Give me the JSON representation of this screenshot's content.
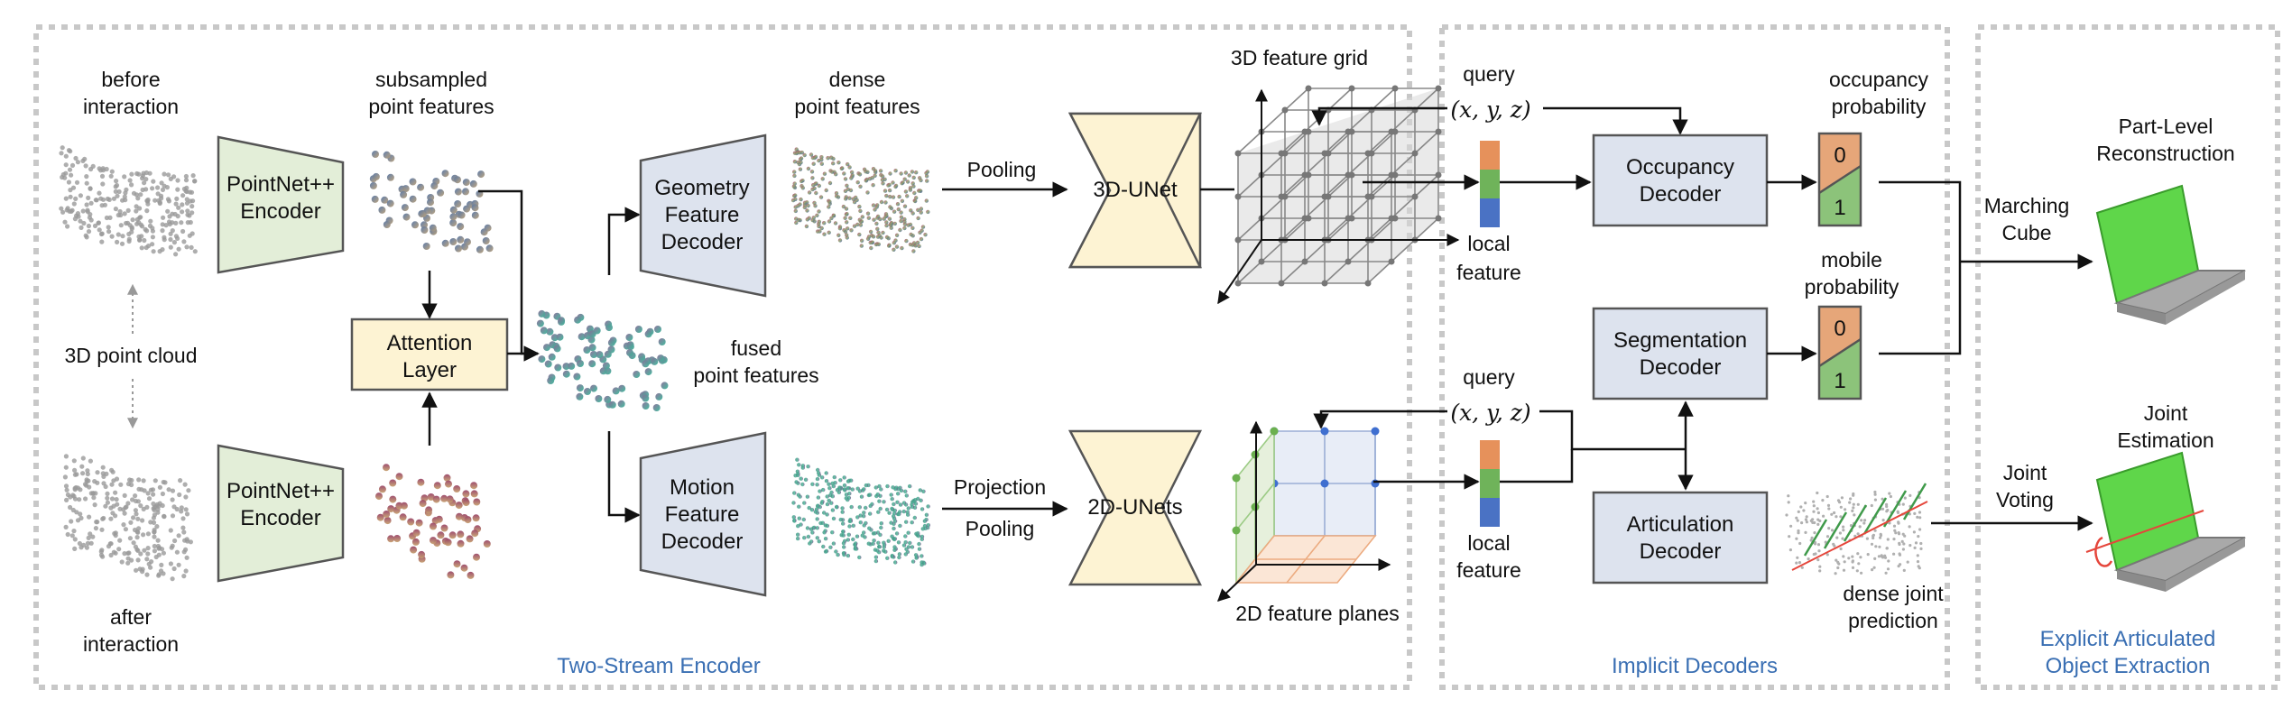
{
  "sections": {
    "encoder": "Two-Stream Encoder",
    "decoders": "Implicit Decoders",
    "extraction": [
      "Explicit Articulated",
      "Object Extraction"
    ]
  },
  "labels": {
    "before_interaction": [
      "before",
      "interaction"
    ],
    "after_interaction": [
      "after",
      "interaction"
    ],
    "point_cloud": "3D point cloud",
    "subsampled": [
      "subsampled",
      "point features"
    ],
    "dense": [
      "dense",
      "point features"
    ],
    "fused": [
      "fused",
      "point features"
    ],
    "grid_3d": "3D feature grid",
    "planes_2d": "2D feature planes",
    "pooling_top": "Pooling",
    "projection": "Projection",
    "pooling_bottom": "Pooling",
    "query_top": "query",
    "query_bottom": "query",
    "xyz_top": "(x, y, z)",
    "xyz_bottom": "(x, y, z)",
    "local_feature_top": [
      "local",
      "feature"
    ],
    "local_feature_bottom": [
      "local",
      "feature"
    ],
    "occupancy_prob": [
      "occupancy",
      "probability"
    ],
    "mobile_prob": [
      "mobile",
      "probability"
    ],
    "dense_joint": [
      "dense joint",
      "prediction"
    ],
    "marching": [
      "Marching",
      "Cube"
    ],
    "joint_voting": [
      "Joint",
      "Voting"
    ],
    "part_level": [
      "Part-Level",
      "Reconstruction"
    ],
    "joint_estimation": [
      "Joint",
      "Estimation"
    ],
    "prob_0": "0",
    "prob_1": "1"
  },
  "boxes": {
    "pointnet_top": [
      "PointNet++",
      "Encoder"
    ],
    "pointnet_bottom": [
      "PointNet++",
      "Encoder"
    ],
    "attention": [
      "Attention",
      "Layer"
    ],
    "geometry_decoder": [
      "Geometry",
      "Feature",
      "Decoder"
    ],
    "motion_decoder": [
      "Motion",
      "Feature",
      "Decoder"
    ],
    "unet_3d": "3D-UNet",
    "unet_2d": "2D-UNets",
    "occupancy_decoder": [
      "Occupancy",
      "Decoder"
    ],
    "segmentation_decoder": [
      "Segmentation",
      "Decoder"
    ],
    "articulation_decoder": [
      "Articulation",
      "Decoder"
    ]
  },
  "colors": {
    "green_box": "#e3eed8",
    "blue_box": "#dde3ee",
    "yellow_box": "#fdf3d3",
    "section_text": "#3a6fb3",
    "orange": "#e6a679",
    "green": "#8cc37a",
    "blue": "#4a72c4",
    "laptop_green": "#5fd64a"
  }
}
